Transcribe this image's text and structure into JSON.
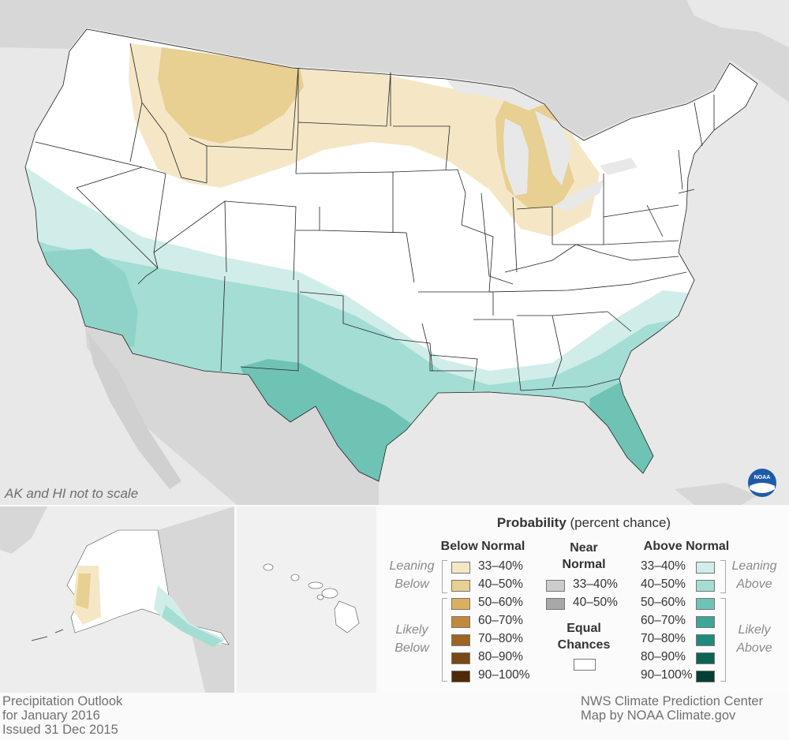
{
  "map_note": "AK and HI not to scale",
  "footer": {
    "left": [
      "Precipitation Outlook",
      "for January 2016",
      "Issued 31 Dec 2015"
    ],
    "right": [
      "NWS Climate Prediction Center",
      "Map by NOAA Climate.gov"
    ]
  },
  "logo_text": "NOAA",
  "legend": {
    "title_bold": "Probability",
    "title_rest": " (percent chance)",
    "below_header": "Below Normal",
    "near_header": [
      "Near",
      "Normal"
    ],
    "above_header": "Above Normal",
    "equal_header": [
      "Equal",
      "Chances"
    ],
    "leaning_below": [
      "Leaning",
      "Below"
    ],
    "likely_below": [
      "Likely",
      "Below"
    ],
    "leaning_above": [
      "Leaning",
      "Above"
    ],
    "likely_above": [
      "Likely",
      "Above"
    ],
    "below_bins": [
      {
        "label": "33–40%",
        "color": "#f5e7c6"
      },
      {
        "label": "40–50%",
        "color": "#e8cf92"
      },
      {
        "label": "50–60%",
        "color": "#d9b061"
      },
      {
        "label": "60–70%",
        "color": "#c08a3c"
      },
      {
        "label": "70–80%",
        "color": "#9c6526"
      },
      {
        "label": "80–90%",
        "color": "#7a4916"
      },
      {
        "label": "90–100%",
        "color": "#4e2a08"
      }
    ],
    "near_bins": [
      {
        "label": "33–40%",
        "color": "#cccccc"
      },
      {
        "label": "40–50%",
        "color": "#a8a8a8"
      }
    ],
    "above_bins": [
      {
        "label": "33–40%",
        "color": "#d1ede9"
      },
      {
        "label": "40–50%",
        "color": "#a3ddd4"
      },
      {
        "label": "50–60%",
        "color": "#6fc3b5"
      },
      {
        "label": "60–70%",
        "color": "#3ea697"
      },
      {
        "label": "70–80%",
        "color": "#1f8a7a"
      },
      {
        "label": "80–90%",
        "color": "#0c6456"
      },
      {
        "label": "90–100%",
        "color": "#043f35"
      }
    ],
    "equal_color": "#ffffff"
  }
}
